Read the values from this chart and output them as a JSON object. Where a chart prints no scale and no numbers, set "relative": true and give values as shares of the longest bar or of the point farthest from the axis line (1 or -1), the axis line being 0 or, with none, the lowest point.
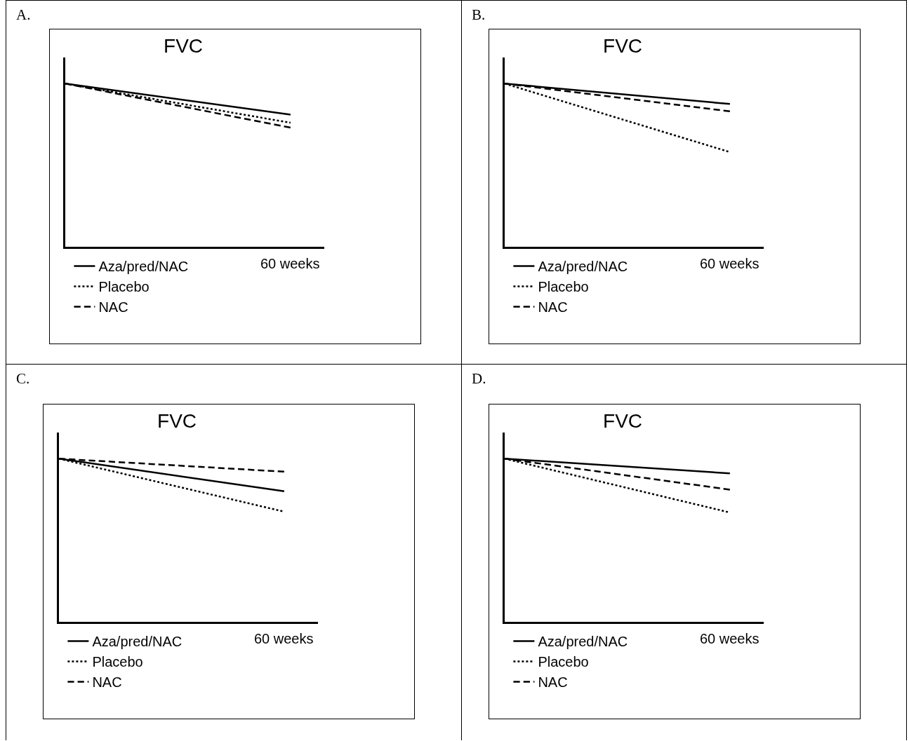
{
  "chart_data": [
    {
      "type": "line",
      "title": "FVC",
      "annotations": [
        "A.",
        "60 weeks"
      ],
      "relative": true,
      "categories": [
        null,
        null
      ],
      "legend": "bottom left",
      "marker": "none",
      "series": [
        {
          "name": "Aza/pred/NAC",
          "color": "#000000",
          "line_style": "solid",
          "values": [
            1,
            0.81
          ]
        },
        {
          "name": "Placebo",
          "color": "#000000",
          "line_style": "dotted",
          "values": [
            1,
            0.76
          ]
        },
        {
          "name": "NAC",
          "color": "#000000",
          "line_style": "dashed",
          "values": [
            1,
            0.73
          ]
        }
      ]
    },
    {
      "type": "line",
      "title": "FVC",
      "annotations": [
        "B.",
        "60 weeks"
      ],
      "relative": true,
      "categories": [
        null,
        null
      ],
      "legend": "bottom left",
      "marker": "none",
      "series": [
        {
          "name": "Aza/pred/NAC",
          "color": "#000000",
          "line_style": "solid",
          "values": [
            1,
            0.875
          ]
        },
        {
          "name": "Placebo",
          "color": "#000000",
          "line_style": "dotted",
          "values": [
            1,
            0.58
          ]
        },
        {
          "name": "NAC",
          "color": "#000000",
          "line_style": "dashed",
          "values": [
            1,
            0.83
          ]
        }
      ]
    },
    {
      "type": "line",
      "title": "FVC",
      "annotations": [
        "C.",
        "60 weeks"
      ],
      "relative": true,
      "categories": [
        null,
        null
      ],
      "legend": "bottom left",
      "marker": "none",
      "series": [
        {
          "name": "Aza/pred/NAC",
          "color": "#000000",
          "line_style": "solid",
          "values": [
            1,
            0.8
          ]
        },
        {
          "name": "Placebo",
          "color": "#000000",
          "line_style": "dotted",
          "values": [
            1,
            0.675
          ]
        },
        {
          "name": "NAC",
          "color": "#000000",
          "line_style": "dashed",
          "values": [
            1,
            0.92
          ]
        }
      ]
    },
    {
      "type": "line",
      "title": "FVC",
      "annotations": [
        "D.",
        "60 weeks"
      ],
      "relative": true,
      "categories": [
        null,
        null
      ],
      "legend": "bottom left",
      "marker": "none",
      "series": [
        {
          "name": "Aza/pred/NAC",
          "color": "#000000",
          "line_style": "solid",
          "values": [
            1,
            0.91
          ]
        },
        {
          "name": "Placebo",
          "color": "#000000",
          "line_style": "dotted",
          "values": [
            1,
            0.67
          ]
        },
        {
          "name": "NAC",
          "color": "#000000",
          "line_style": "dashed",
          "values": [
            1,
            0.81
          ]
        }
      ]
    }
  ]
}
